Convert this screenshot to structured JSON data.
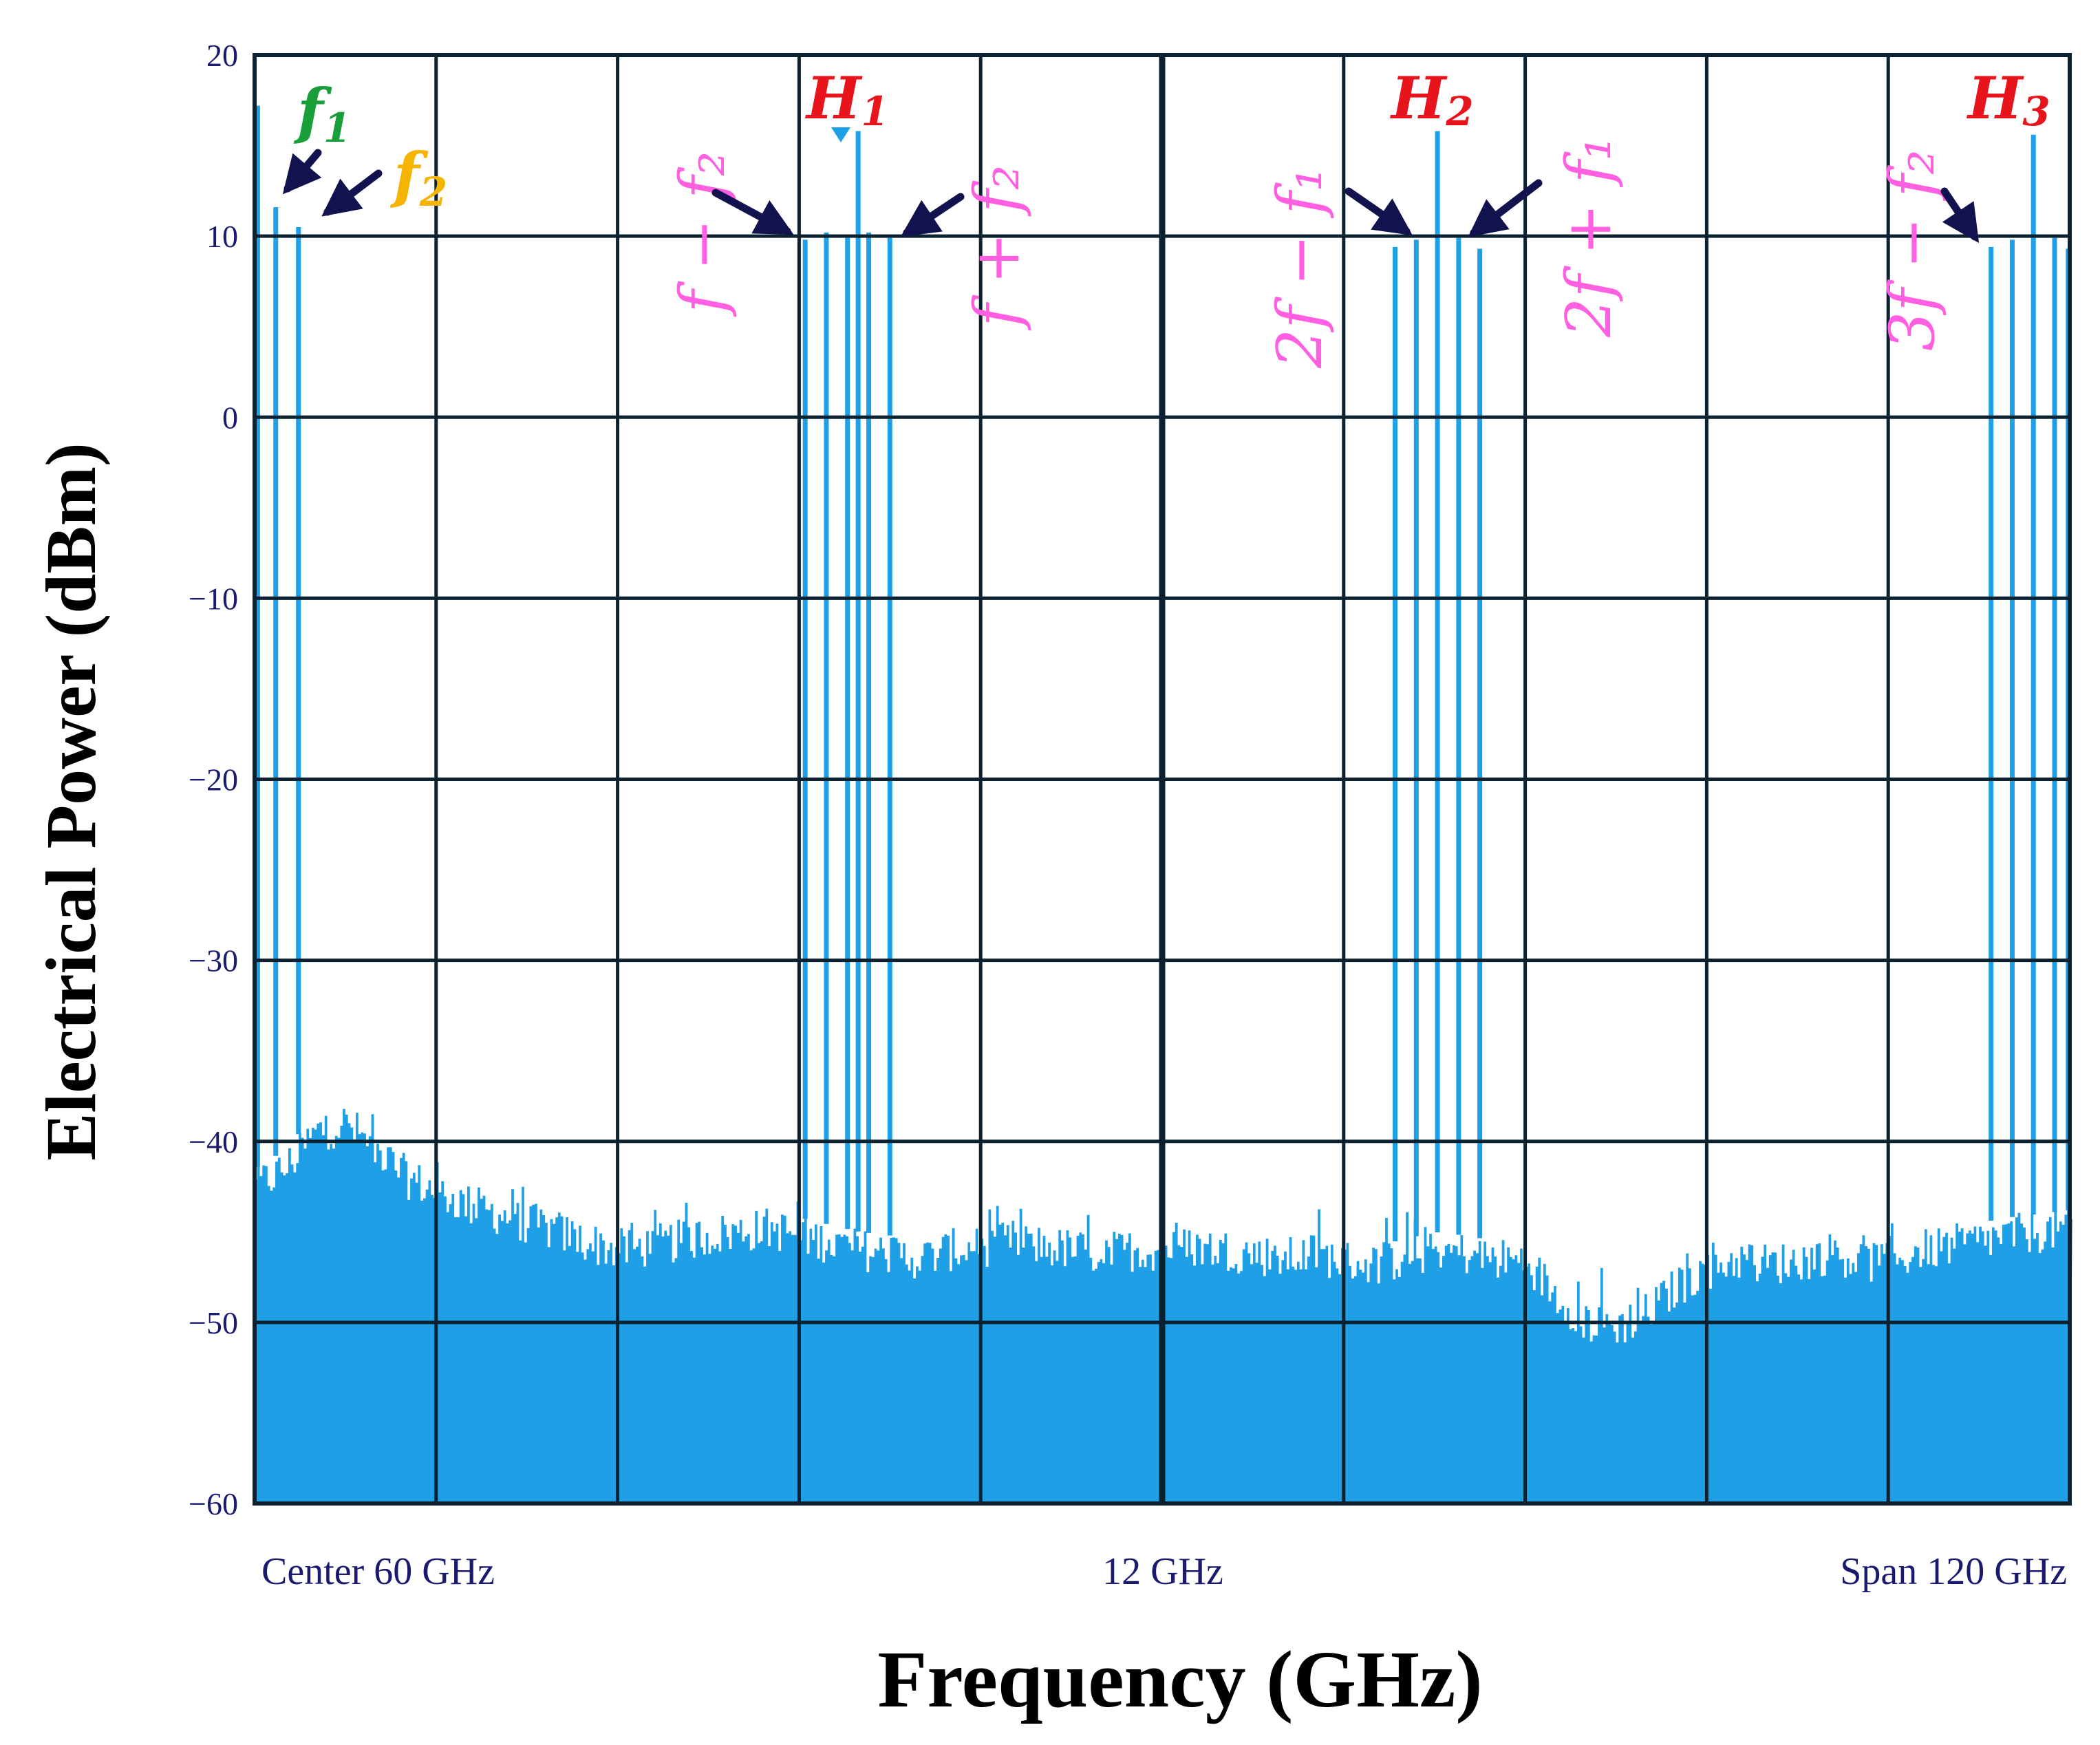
{
  "colors": {
    "trace": "#1fa0e6",
    "grid": "#0d2230",
    "tick": "#1a1a6e",
    "arrow": "#12124e",
    "f1": "#1a9e3a",
    "f2": "#f5b400",
    "harmonic": "#e8141b",
    "mix": "#ff5fe0"
  },
  "chart_data": {
    "type": "line",
    "xlabel": "Frequency (GHz)",
    "ylabel": "Electrical Power (dBm)",
    "xlim": [
      0,
      120
    ],
    "ylim": [
      -60,
      20
    ],
    "yticks": [
      20,
      10,
      0,
      -10,
      -20,
      -30,
      -40,
      -50,
      -60
    ],
    "ytick_labels": [
      "20",
      "10",
      "0",
      "−10",
      "−20",
      "−30",
      "−40",
      "−50",
      "−60"
    ],
    "x_grid_divisions": 10,
    "grid": true,
    "bottom_labels": {
      "left": "Center 60 GHz",
      "center": "12 GHz",
      "right": "Span 120  GHz"
    },
    "spurs": [
      {
        "x": 0.2,
        "y": 17.2
      },
      {
        "x": 1.4,
        "y": 11.6
      },
      {
        "x": 2.9,
        "y": 10.5
      },
      {
        "x": 36.4,
        "y": 9.8
      },
      {
        "x": 37.8,
        "y": 10.2
      },
      {
        "x": 39.2,
        "y": 9.9
      },
      {
        "x": 39.9,
        "y": 15.8
      },
      {
        "x": 40.6,
        "y": 10.2
      },
      {
        "x": 42.0,
        "y": 9.9
      },
      {
        "x": 75.4,
        "y": 9.4
      },
      {
        "x": 76.8,
        "y": 9.8
      },
      {
        "x": 78.2,
        "y": 15.8
      },
      {
        "x": 79.6,
        "y": 9.9
      },
      {
        "x": 81.0,
        "y": 9.3
      },
      {
        "x": 114.8,
        "y": 9.4
      },
      {
        "x": 116.2,
        "y": 9.8
      },
      {
        "x": 117.6,
        "y": 15.6
      },
      {
        "x": 119.0,
        "y": 9.9
      },
      {
        "x": 119.9,
        "y": 9.3
      }
    ],
    "noise_floor": {
      "x": [
        0,
        2,
        4,
        6,
        8,
        10,
        12,
        14,
        16,
        18,
        20,
        22,
        24,
        26,
        28,
        30,
        32,
        34,
        36,
        38,
        40,
        42,
        44,
        46,
        48,
        50,
        52,
        54,
        56,
        58,
        60,
        62,
        64,
        66,
        68,
        70,
        72,
        74,
        76,
        78,
        80,
        82,
        84,
        86,
        88,
        90,
        92,
        94,
        96,
        98,
        100,
        102,
        104,
        106,
        108,
        110,
        112,
        114,
        116,
        118,
        120
      ],
      "y": [
        -42.5,
        -41.5,
        -39.5,
        -39.0,
        -40.5,
        -42.0,
        -42.8,
        -43.5,
        -44.0,
        -44.5,
        -45.0,
        -45.6,
        -46.0,
        -45.8,
        -45.5,
        -45.2,
        -45.0,
        -44.8,
        -45.2,
        -45.6,
        -46.0,
        -46.2,
        -46.5,
        -46.0,
        -45.8,
        -45.5,
        -45.8,
        -46.0,
        -46.2,
        -46.0,
        -46.0,
        -45.8,
        -46.0,
        -46.2,
        -46.5,
        -46.2,
        -46.6,
        -46.8,
        -46.4,
        -46.0,
        -46.2,
        -46.5,
        -46.6,
        -48.5,
        -50.0,
        -50.2,
        -49.5,
        -48.0,
        -47.0,
        -46.5,
        -46.8,
        -46.6,
        -46.2,
        -46.5,
        -46.8,
        -46.0,
        -45.8,
        -45.5,
        -45.2,
        -45.0,
        -44.8
      ]
    },
    "annotations": {
      "f1": {
        "base": "f",
        "sub": "1"
      },
      "f2": {
        "base": "f",
        "sub": "2"
      },
      "h1": {
        "base": "H",
        "sub": "1"
      },
      "h2": {
        "base": "H",
        "sub": "2"
      },
      "h3": {
        "base": "H",
        "sub": "3"
      },
      "f_minus_f2": "f − f₂",
      "f_plus_f2": "f + f₂",
      "2f_minus_f1": "2f − f₁",
      "2f_plus_f1": "2f + f₁",
      "3f_minus_f2": "3f − f₂"
    }
  }
}
